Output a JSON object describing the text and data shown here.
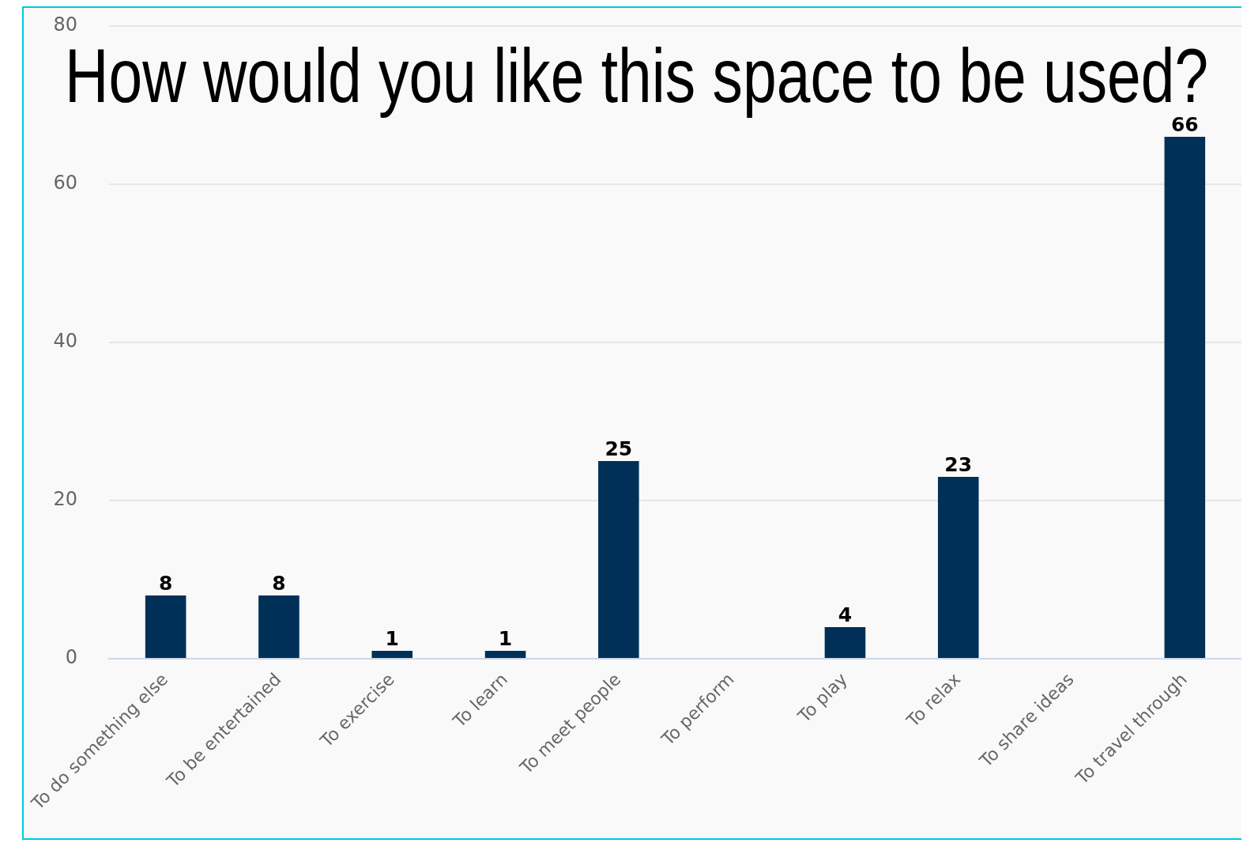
{
  "chart_data": {
    "type": "bar",
    "title": "How would you like this space to be used?",
    "categories": [
      "To do something else",
      "To be entertained",
      "To exercise",
      "To learn",
      "To meet people",
      "To perform",
      "To play",
      "To relax",
      "To share ideas",
      "To travel through"
    ],
    "values": [
      8,
      8,
      1,
      1,
      25,
      0,
      4,
      23,
      0,
      66
    ],
    "value_labels": [
      "8",
      "8",
      "1",
      "1",
      "25",
      null,
      "4",
      "23",
      null,
      "66"
    ],
    "color": "#003057",
    "ylim": [
      0,
      80
    ],
    "yticks": [
      0,
      20,
      40,
      60,
      80
    ],
    "grid": "y"
  }
}
